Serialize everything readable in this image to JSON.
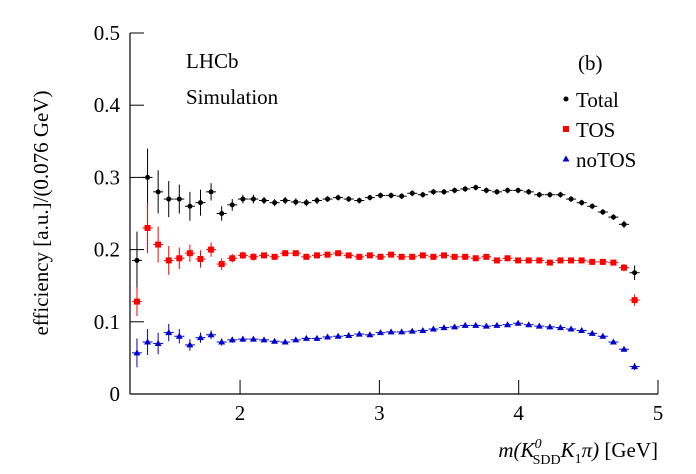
{
  "chart_data": {
    "type": "errorbar",
    "y_label": "efficiency [a.u.]/(0.076 GeV)",
    "x_label_parts": [
      "m(K",
      "0",
      "SDD",
      "K",
      "1",
      "π)",
      " [GeV]"
    ],
    "annotations": [
      "LHCb",
      "Simulation",
      "(b)"
    ],
    "xlim": [
      1.21,
      5
    ],
    "ylim": [
      0,
      0.5
    ],
    "xticks": [
      2,
      3,
      4,
      5
    ],
    "yticks": [
      0,
      0.1,
      0.2,
      0.3,
      0.4,
      0.5
    ],
    "x": [
      1.26,
      1.336,
      1.412,
      1.488,
      1.564,
      1.64,
      1.716,
      1.792,
      1.868,
      1.944,
      2.02,
      2.096,
      2.172,
      2.248,
      2.324,
      2.4,
      2.476,
      2.552,
      2.628,
      2.704,
      2.78,
      2.856,
      2.932,
      3.008,
      3.084,
      3.16,
      3.236,
      3.312,
      3.388,
      3.464,
      3.54,
      3.616,
      3.692,
      3.768,
      3.844,
      3.92,
      3.996,
      4.072,
      4.148,
      4.224,
      4.3,
      4.376,
      4.452,
      4.528,
      4.604,
      4.68,
      4.756,
      4.832
    ],
    "series": [
      {
        "name": "Total",
        "color": "#000000",
        "marker": "circle",
        "values": [
          0.185,
          0.3,
          0.28,
          0.27,
          0.27,
          0.26,
          0.265,
          0.28,
          0.25,
          0.262,
          0.27,
          0.27,
          0.268,
          0.265,
          0.268,
          0.266,
          0.265,
          0.268,
          0.27,
          0.272,
          0.27,
          0.268,
          0.272,
          0.275,
          0.275,
          0.274,
          0.278,
          0.276,
          0.28,
          0.28,
          0.282,
          0.284,
          0.286,
          0.282,
          0.28,
          0.282,
          0.282,
          0.28,
          0.276,
          0.276,
          0.276,
          0.27,
          0.265,
          0.26,
          0.252,
          0.245,
          0.235,
          0.168
        ],
        "errors": [
          0.04,
          0.04,
          0.03,
          0.025,
          0.02,
          0.02,
          0.018,
          0.012,
          0.01,
          0.008,
          0.006,
          0.006,
          0.005,
          0.005,
          0.005,
          0.005,
          0.005,
          0.005,
          0.004,
          0.004,
          0.004,
          0.004,
          0.004,
          0.004,
          0.004,
          0.004,
          0.004,
          0.004,
          0.004,
          0.004,
          0.004,
          0.004,
          0.004,
          0.004,
          0.004,
          0.004,
          0.004,
          0.004,
          0.004,
          0.004,
          0.004,
          0.004,
          0.004,
          0.004,
          0.004,
          0.004,
          0.005,
          0.01
        ]
      },
      {
        "name": "TOS",
        "color": "#ff0000",
        "marker": "square",
        "values": [
          0.128,
          0.23,
          0.207,
          0.185,
          0.188,
          0.195,
          0.187,
          0.2,
          0.18,
          0.188,
          0.192,
          0.19,
          0.192,
          0.19,
          0.195,
          0.195,
          0.19,
          0.192,
          0.193,
          0.195,
          0.192,
          0.19,
          0.192,
          0.19,
          0.193,
          0.19,
          0.19,
          0.192,
          0.19,
          0.192,
          0.19,
          0.19,
          0.188,
          0.19,
          0.185,
          0.188,
          0.185,
          0.185,
          0.185,
          0.182,
          0.185,
          0.185,
          0.185,
          0.183,
          0.183,
          0.182,
          0.175,
          0.13
        ],
        "errors": [
          0.02,
          0.035,
          0.025,
          0.02,
          0.015,
          0.012,
          0.012,
          0.01,
          0.008,
          0.006,
          0.005,
          0.005,
          0.004,
          0.004,
          0.004,
          0.004,
          0.004,
          0.004,
          0.004,
          0.004,
          0.004,
          0.004,
          0.004,
          0.004,
          0.004,
          0.004,
          0.004,
          0.004,
          0.004,
          0.004,
          0.004,
          0.004,
          0.004,
          0.004,
          0.004,
          0.004,
          0.004,
          0.004,
          0.004,
          0.004,
          0.004,
          0.004,
          0.004,
          0.004,
          0.004,
          0.004,
          0.005,
          0.008
        ]
      },
      {
        "name": "noTOS",
        "color": "#0000cc",
        "marker": "triangle",
        "values": [
          0.057,
          0.072,
          0.07,
          0.085,
          0.08,
          0.068,
          0.078,
          0.082,
          0.072,
          0.075,
          0.076,
          0.076,
          0.075,
          0.073,
          0.072,
          0.075,
          0.077,
          0.077,
          0.079,
          0.08,
          0.081,
          0.083,
          0.082,
          0.085,
          0.086,
          0.086,
          0.087,
          0.088,
          0.09,
          0.092,
          0.093,
          0.095,
          0.095,
          0.094,
          0.095,
          0.096,
          0.098,
          0.096,
          0.094,
          0.093,
          0.092,
          0.09,
          0.088,
          0.084,
          0.08,
          0.072,
          0.062,
          0.038
        ],
        "errors": [
          0.02,
          0.018,
          0.015,
          0.012,
          0.01,
          0.008,
          0.007,
          0.006,
          0.005,
          0.004,
          0.004,
          0.003,
          0.003,
          0.003,
          0.003,
          0.003,
          0.003,
          0.003,
          0.003,
          0.003,
          0.003,
          0.003,
          0.003,
          0.003,
          0.003,
          0.003,
          0.003,
          0.003,
          0.003,
          0.003,
          0.003,
          0.003,
          0.003,
          0.003,
          0.003,
          0.003,
          0.003,
          0.003,
          0.003,
          0.003,
          0.003,
          0.003,
          0.003,
          0.003,
          0.003,
          0.003,
          0.003,
          0.005
        ]
      }
    ]
  }
}
